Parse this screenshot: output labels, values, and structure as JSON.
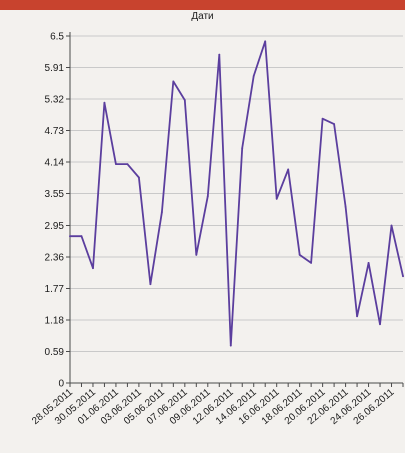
{
  "colors": {
    "top_band": "#c8432e",
    "background": "#f3f1ee",
    "grid": "#c9c9c9",
    "axis": "#4a4a4a",
    "series": "#5b3e9e"
  },
  "chart_data": {
    "type": "line",
    "title": "Дати",
    "xlabel": "",
    "ylabel": "",
    "grid": true,
    "legend": "none",
    "ylim": [
      0,
      6.5
    ],
    "yticks": [
      "0",
      "0.59",
      "1.18",
      "1.77",
      "2.36",
      "2.95",
      "3.55",
      "4.14",
      "4.73",
      "5.32",
      "5.91",
      "6.5"
    ],
    "xtick_labels": [
      "28.05.2011",
      "30.05.2011",
      "01.06.2011",
      "03.06.2011",
      "05.06.2011",
      "07.06.2011",
      "09.06.2011",
      "12.06.2011",
      "14.06.2011",
      "16.06.2011",
      "18.06.2011",
      "20.06.2011",
      "22.06.2011",
      "24.06.2011",
      "26.06.2011"
    ],
    "series": [
      {
        "values": [
          2.75,
          2.75,
          2.15,
          5.25,
          4.1,
          4.1,
          3.85,
          1.85,
          3.2,
          5.65,
          5.3,
          2.4,
          3.5,
          6.15,
          0.7,
          4.4,
          5.75,
          6.4,
          3.45,
          4.0,
          2.4,
          2.25,
          4.95,
          4.85,
          3.3,
          1.25,
          2.25,
          1.1,
          2.95,
          2.0
        ]
      }
    ]
  }
}
